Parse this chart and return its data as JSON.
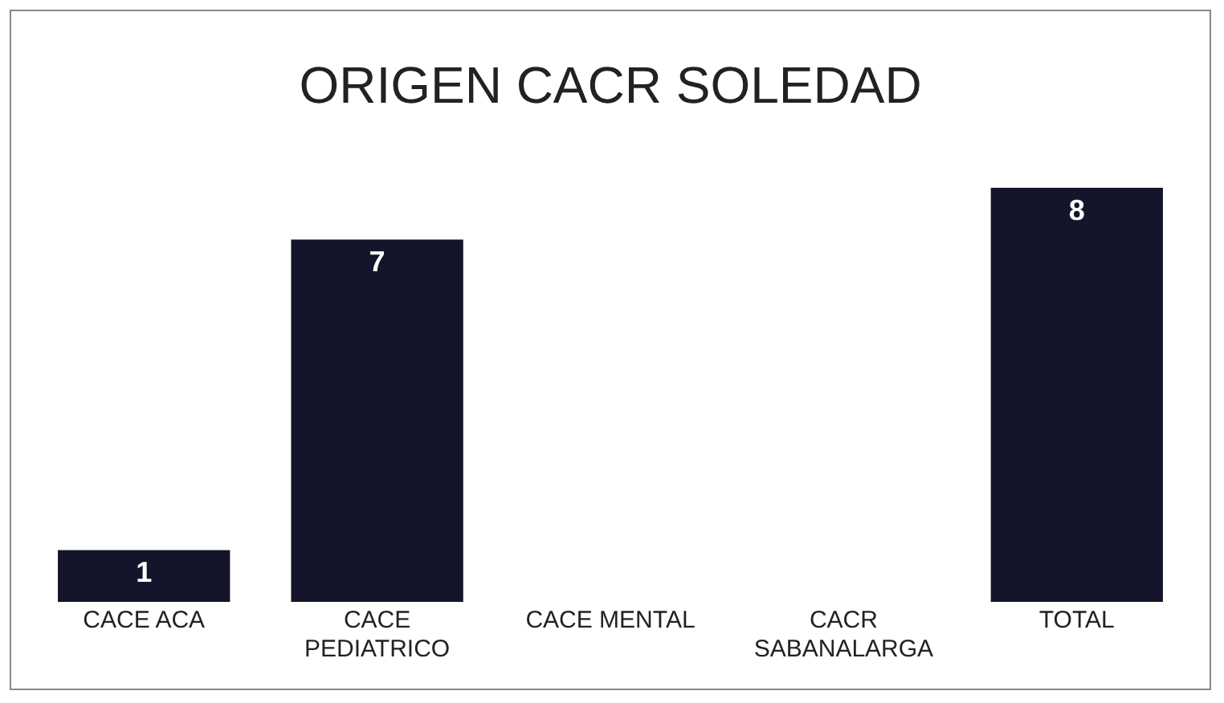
{
  "chart_data": {
    "type": "bar",
    "title": "ORIGEN CACR SOLEDAD",
    "categories": [
      "CACE ACA",
      "CACE PEDIATRICO",
      "CACE MENTAL",
      "CACR SABANALARGA",
      "TOTAL"
    ],
    "values": [
      1,
      7,
      null,
      null,
      8
    ],
    "color": "#14142a",
    "data_labels": true,
    "grid": false,
    "legend": false,
    "tick_labels": "x"
  }
}
